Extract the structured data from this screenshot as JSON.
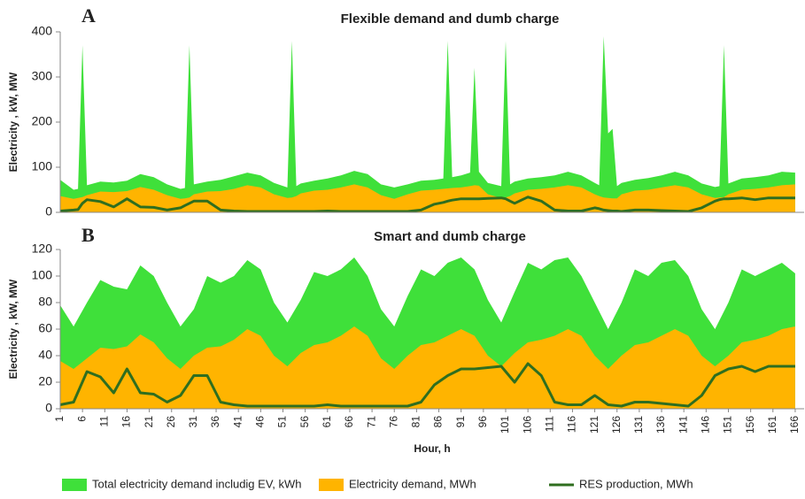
{
  "chart_data": [
    {
      "type": "area",
      "title": "Flexible demand and dumb charge",
      "annotation": "A",
      "ylabel": "Electricity , kW, MW",
      "x": [
        1,
        4,
        5,
        6,
        7,
        10,
        13,
        16,
        19,
        22,
        25,
        28,
        29,
        30,
        31,
        34,
        37,
        40,
        43,
        46,
        49,
        52,
        53,
        54,
        55,
        58,
        61,
        64,
        67,
        70,
        73,
        76,
        79,
        82,
        85,
        87,
        88,
        89,
        91,
        93,
        94,
        95,
        97,
        100,
        101,
        102,
        103,
        106,
        109,
        112,
        115,
        118,
        121,
        122,
        123,
        124,
        125,
        126,
        127,
        130,
        133,
        136,
        139,
        142,
        145,
        148,
        149,
        150,
        151,
        154,
        157,
        160,
        163,
        166
      ],
      "series": [
        {
          "color": "#3fe03a",
          "kind": "area",
          "values": [
            72,
            50,
            52,
            370,
            60,
            68,
            66,
            70,
            85,
            78,
            62,
            52,
            54,
            370,
            62,
            68,
            72,
            80,
            88,
            82,
            65,
            55,
            380,
            58,
            64,
            70,
            75,
            82,
            92,
            85,
            62,
            55,
            62,
            70,
            72,
            75,
            380,
            78,
            82,
            88,
            320,
            90,
            65,
            58,
            380,
            62,
            68,
            75,
            78,
            82,
            90,
            82,
            65,
            60,
            390,
            175,
            185,
            58,
            65,
            72,
            76,
            82,
            90,
            82,
            64,
            56,
            58,
            370,
            64,
            75,
            78,
            82,
            90,
            88
          ]
        },
        {
          "color": "#ffb400",
          "kind": "area",
          "values": [
            36,
            30,
            32,
            34,
            38,
            46,
            45,
            47,
            56,
            50,
            38,
            30,
            31,
            33,
            40,
            46,
            47,
            52,
            60,
            55,
            40,
            32,
            33,
            36,
            42,
            48,
            50,
            55,
            62,
            55,
            38,
            30,
            40,
            48,
            50,
            52,
            53,
            54,
            55,
            58,
            60,
            59,
            40,
            32,
            33,
            36,
            42,
            50,
            52,
            55,
            60,
            55,
            40,
            36,
            33,
            32,
            31,
            31,
            40,
            48,
            50,
            55,
            60,
            55,
            40,
            32,
            33,
            34,
            40,
            50,
            52,
            55,
            60,
            62
          ]
        },
        {
          "color": "#2f6e1f",
          "kind": "line",
          "values": [
            3,
            5,
            6,
            20,
            28,
            24,
            12,
            30,
            12,
            11,
            5,
            10,
            15,
            20,
            25,
            25,
            5,
            3,
            2,
            2,
            2,
            2,
            2,
            2,
            2,
            2,
            3,
            2,
            2,
            2,
            2,
            2,
            2,
            5,
            18,
            22,
            25,
            27,
            30,
            30,
            30,
            30,
            31,
            32,
            30,
            25,
            20,
            34,
            25,
            5,
            3,
            3,
            10,
            8,
            5,
            4,
            3,
            3,
            2,
            5,
            5,
            4,
            3,
            2,
            10,
            25,
            28,
            30,
            30,
            32,
            28,
            32,
            32,
            32
          ]
        }
      ],
      "xlim": [
        1,
        168
      ],
      "ylim": [
        0,
        400
      ],
      "yticks": [
        0,
        100,
        200,
        300,
        400
      ]
    },
    {
      "type": "area",
      "title": "Smart and dumb charge",
      "annotation": "B",
      "ylabel": "Electricity , kW, MW",
      "xlabel": "Hour, h",
      "x": [
        1,
        4,
        7,
        10,
        13,
        16,
        19,
        22,
        25,
        28,
        31,
        34,
        37,
        40,
        43,
        46,
        49,
        52,
        55,
        58,
        61,
        64,
        67,
        70,
        73,
        76,
        79,
        82,
        85,
        88,
        91,
        94,
        97,
        100,
        103,
        106,
        109,
        112,
        115,
        118,
        121,
        124,
        127,
        130,
        133,
        136,
        139,
        142,
        145,
        148,
        151,
        154,
        157,
        160,
        163,
        166
      ],
      "series": [
        {
          "name": "Total electricity demand includig EV, kWh",
          "color": "#3fe03a",
          "kind": "area",
          "values": [
            78,
            62,
            80,
            97,
            92,
            90,
            108,
            100,
            80,
            62,
            75,
            100,
            95,
            100,
            112,
            105,
            80,
            65,
            82,
            103,
            100,
            105,
            114,
            100,
            75,
            62,
            85,
            105,
            100,
            110,
            114,
            105,
            82,
            65,
            88,
            110,
            105,
            112,
            114,
            100,
            80,
            60,
            80,
            105,
            100,
            110,
            112,
            100,
            75,
            60,
            80,
            105,
            100,
            105,
            110,
            102
          ]
        },
        {
          "name": "Electricity demand, MWh",
          "color": "#ffb400",
          "kind": "area",
          "values": [
            36,
            30,
            38,
            46,
            45,
            47,
            56,
            50,
            38,
            30,
            40,
            46,
            47,
            52,
            60,
            55,
            40,
            32,
            42,
            48,
            50,
            55,
            62,
            55,
            38,
            30,
            40,
            48,
            50,
            55,
            60,
            55,
            40,
            32,
            42,
            50,
            52,
            55,
            60,
            55,
            40,
            30,
            40,
            48,
            50,
            55,
            60,
            55,
            40,
            32,
            40,
            50,
            52,
            55,
            60,
            62
          ]
        },
        {
          "name": "RES production, MWh",
          "color": "#2f6e1f",
          "kind": "line",
          "values": [
            3,
            5,
            28,
            24,
            12,
            30,
            12,
            11,
            5,
            10,
            25,
            25,
            5,
            3,
            2,
            2,
            2,
            2,
            2,
            2,
            3,
            2,
            2,
            2,
            2,
            2,
            2,
            5,
            18,
            25,
            30,
            30,
            31,
            32,
            20,
            34,
            25,
            5,
            3,
            3,
            10,
            3,
            2,
            5,
            5,
            4,
            3,
            2,
            10,
            25,
            30,
            32,
            28,
            32,
            32,
            32
          ]
        }
      ],
      "xlim": [
        1,
        168
      ],
      "ylim": [
        0,
        120
      ],
      "yticks": [
        0,
        20,
        40,
        60,
        80,
        100,
        120
      ],
      "xticks": [
        1,
        6,
        11,
        16,
        21,
        26,
        31,
        36,
        41,
        46,
        51,
        56,
        61,
        66,
        71,
        76,
        81,
        86,
        91,
        96,
        101,
        106,
        111,
        116,
        121,
        126,
        131,
        136,
        141,
        146,
        151,
        156,
        161,
        166
      ]
    }
  ]
}
